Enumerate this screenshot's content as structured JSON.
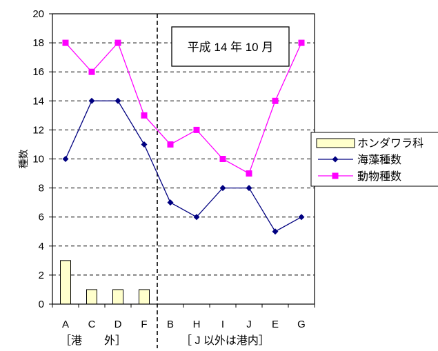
{
  "chart_data": {
    "type": "bar+line",
    "categories": [
      "A",
      "C",
      "D",
      "F",
      "B",
      "H",
      "I",
      "J",
      "E",
      "G"
    ],
    "ylabel": "種数",
    "ylim": [
      0,
      20
    ],
    "yticks": [
      0,
      2,
      4,
      6,
      8,
      10,
      12,
      14,
      16,
      18,
      20
    ],
    "grid": true,
    "legend_position": "right",
    "annotation": "平成 14 年 10 月",
    "group_labels": [
      {
        "text": "［港　　外］",
        "categories": [
          "A",
          "C",
          "D",
          "F"
        ]
      },
      {
        "text": "［ J 以外は港内］",
        "categories": [
          "B",
          "H",
          "I",
          "J",
          "E",
          "G"
        ]
      }
    ],
    "divider_after_category": "F",
    "series": [
      {
        "name": "ホンダワラ科",
        "type": "bar",
        "color": "#FFFFCC",
        "values": [
          3,
          1,
          1,
          1,
          0,
          0,
          0,
          0,
          0,
          0
        ]
      },
      {
        "name": "海藻種数",
        "type": "line",
        "marker": "diamond",
        "color": "#000080",
        "values": [
          10,
          14,
          14,
          11,
          7,
          6,
          8,
          8,
          5,
          6
        ]
      },
      {
        "name": "動物種数",
        "type": "line",
        "marker": "square",
        "color": "#FF00FF",
        "values": [
          18,
          16,
          18,
          13,
          11,
          12,
          10,
          9,
          14,
          18
        ]
      }
    ]
  }
}
